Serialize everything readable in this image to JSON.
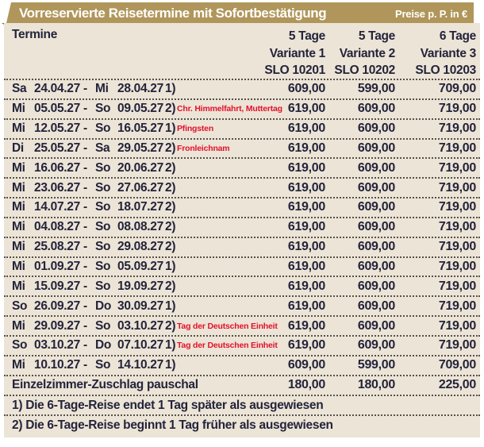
{
  "header": {
    "title": "Vorreservierte Reisetermine mit Sofortbestätigung",
    "price_note": "Preise p. P. in €"
  },
  "columns": {
    "termine_label": "Termine",
    "variants": [
      {
        "duration": "5 Tage",
        "name": "Variante 1",
        "code": "SLO 10201"
      },
      {
        "duration": "5 Tage",
        "name": "Variante 2",
        "code": "SLO 10202"
      },
      {
        "duration": "6 Tage",
        "name": "Variante 3",
        "code": "SLO 10203"
      }
    ]
  },
  "table_meta": {
    "range_separator": "-"
  },
  "rows": [
    {
      "day1": "Sa",
      "date1": "24.04.27",
      "day2": "Mi",
      "date2": "28.04.27",
      "marker": "1)",
      "note": "",
      "p1": "609,00",
      "p2": "599,00",
      "p3": "709,00"
    },
    {
      "day1": "Mi",
      "date1": "05.05.27",
      "day2": "So",
      "date2": "09.05.27",
      "marker": "2)",
      "note": "Chr. Himmelfahrt, Muttertag",
      "p1": "619,00",
      "p2": "609,00",
      "p3": "719,00"
    },
    {
      "day1": "Mi",
      "date1": "12.05.27",
      "day2": "So",
      "date2": "16.05.27",
      "marker": "1)",
      "note": "Pfingsten",
      "p1": "619,00",
      "p2": "609,00",
      "p3": "719,00"
    },
    {
      "day1": "Di",
      "date1": "25.05.27",
      "day2": "Sa",
      "date2": "29.05.27",
      "marker": "2)",
      "note": "Fronleichnam",
      "p1": "619,00",
      "p2": "609,00",
      "p3": "719,00"
    },
    {
      "day1": "Mi",
      "date1": "16.06.27",
      "day2": "So",
      "date2": "20.06.27",
      "marker": "2)",
      "note": "",
      "p1": "619,00",
      "p2": "609,00",
      "p3": "719,00"
    },
    {
      "day1": "Mi",
      "date1": "23.06.27",
      "day2": "So",
      "date2": "27.06.27",
      "marker": "2)",
      "note": "",
      "p1": "619,00",
      "p2": "609,00",
      "p3": "719,00"
    },
    {
      "day1": "Mi",
      "date1": "14.07.27",
      "day2": "So",
      "date2": "18.07.27",
      "marker": "2)",
      "note": "",
      "p1": "619,00",
      "p2": "609,00",
      "p3": "719,00"
    },
    {
      "day1": "Mi",
      "date1": "04.08.27",
      "day2": "So",
      "date2": "08.08.27",
      "marker": "2)",
      "note": "",
      "p1": "619,00",
      "p2": "609,00",
      "p3": "719,00"
    },
    {
      "day1": "Mi",
      "date1": "25.08.27",
      "day2": "So",
      "date2": "29.08.27",
      "marker": "2)",
      "note": "",
      "p1": "619,00",
      "p2": "609,00",
      "p3": "719,00"
    },
    {
      "day1": "Mi",
      "date1": "01.09.27",
      "day2": "So",
      "date2": "05.09.27",
      "marker": "1)",
      "note": "",
      "p1": "619,00",
      "p2": "609,00",
      "p3": "719,00"
    },
    {
      "day1": "Mi",
      "date1": "15.09.27",
      "day2": "So",
      "date2": "19.09.27",
      "marker": "2)",
      "note": "",
      "p1": "619,00",
      "p2": "609,00",
      "p3": "719,00"
    },
    {
      "day1": "So",
      "date1": "26.09.27",
      "day2": "Do",
      "date2": "30.09.27",
      "marker": "1)",
      "note": "",
      "p1": "619,00",
      "p2": "609,00",
      "p3": "719,00"
    },
    {
      "day1": "Mi",
      "date1": "29.09.27",
      "day2": "So",
      "date2": "03.10.27",
      "marker": "2)",
      "note": "Tag der Deutschen Einheit",
      "p1": "619,00",
      "p2": "609,00",
      "p3": "719,00"
    },
    {
      "day1": "So",
      "date1": "03.10.27",
      "day2": "Do",
      "date2": "07.10.27",
      "marker": "1)",
      "note": "Tag der Deutschen Einheit",
      "p1": "619,00",
      "p2": "609,00",
      "p3": "719,00"
    },
    {
      "day1": "Mi",
      "date1": "10.10.27",
      "day2": "So",
      "date2": "14.10.27",
      "marker": "1)",
      "note": "",
      "p1": "609,00",
      "p2": "599,00",
      "p3": "709,00"
    }
  ],
  "surcharge_row": {
    "label": "Einzelzimmer-Zuschlag pauschal",
    "p1": "180,00",
    "p2": "180,00",
    "p3": "225,00"
  },
  "footnotes": [
    "1) Die 6-Tage-Reise endet 1 Tag später als ausgewiesen",
    "2) Die 6-Tage-Reise beginnt 1 Tag früher als ausgewiesen"
  ],
  "colors": {
    "gold": "#b0965a",
    "goldDark": "#8a7039",
    "beige": "#ece4d6",
    "ink": "#23233b",
    "red": "#e3112c",
    "dots": "#55504a"
  }
}
